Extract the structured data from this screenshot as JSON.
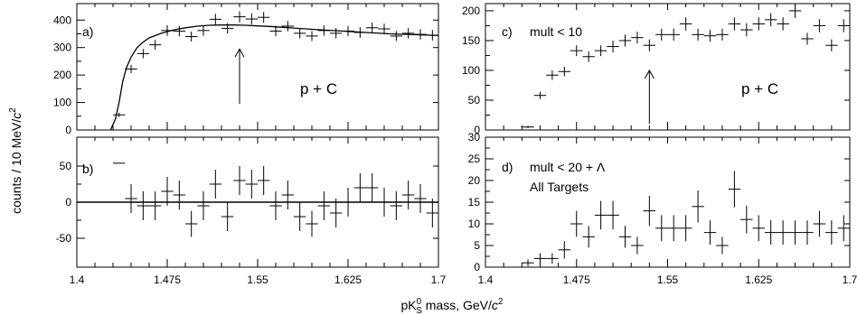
{
  "xlabel_prefix": "pK",
  "xlabel_sup": "0",
  "xlabel_sub": "S",
  "xlabel_mid": " mass, GeV/",
  "xlabel_c": "c",
  "xlabel_exp": "2",
  "ylabel_main": "counts / 10 MeV/",
  "ylabel_c": "c",
  "ylabel_exp": "2",
  "chart_data": [
    {
      "panel": "a",
      "type": "scatter",
      "label": "a)",
      "annotation": "p + C",
      "xlim": [
        1.4,
        1.7
      ],
      "ylim": [
        0,
        460
      ],
      "yticks": [
        0,
        100,
        200,
        300,
        400
      ],
      "ytick_labels": [
        "0",
        "100",
        "200",
        "300",
        "400"
      ],
      "arrow_at_x": 1.535,
      "arrow_from_y": 95,
      "arrow_to_y": 295,
      "x": [
        1.435,
        1.445,
        1.455,
        1.465,
        1.475,
        1.485,
        1.495,
        1.505,
        1.515,
        1.525,
        1.535,
        1.545,
        1.555,
        1.565,
        1.575,
        1.585,
        1.595,
        1.605,
        1.615,
        1.625,
        1.635,
        1.645,
        1.655,
        1.665,
        1.675,
        1.685,
        1.695
      ],
      "y": [
        55,
        222,
        278,
        310,
        362,
        360,
        340,
        362,
        403,
        370,
        412,
        404,
        410,
        360,
        378,
        352,
        342,
        362,
        352,
        360,
        355,
        372,
        368,
        342,
        352,
        348,
        345
      ],
      "xerr": 0.005,
      "yerr": [
        8,
        15,
        17,
        18,
        19,
        19,
        18,
        19,
        20,
        19,
        20,
        20,
        20,
        19,
        19,
        19,
        18,
        19,
        19,
        19,
        19,
        19,
        19,
        18,
        19,
        19,
        19
      ],
      "fit_curve": {
        "x": [
          1.428,
          1.432,
          1.435,
          1.438,
          1.441,
          1.445,
          1.45,
          1.455,
          1.46,
          1.47,
          1.48,
          1.49,
          1.5,
          1.51,
          1.52,
          1.53,
          1.54,
          1.55,
          1.56,
          1.57,
          1.58,
          1.59,
          1.6,
          1.62,
          1.64,
          1.66,
          1.68,
          1.7
        ],
        "y": [
          0,
          40,
          100,
          175,
          225,
          265,
          300,
          320,
          335,
          352,
          364,
          372,
          378,
          381,
          382,
          382,
          381,
          379,
          377,
          374,
          371,
          368,
          365,
          360,
          355,
          350,
          347,
          344
        ]
      }
    },
    {
      "panel": "b",
      "type": "scatter",
      "label": "b)",
      "xlim": [
        1.4,
        1.7
      ],
      "ylim": [
        -90,
        90
      ],
      "yticks": [
        -50,
        0,
        50
      ],
      "ytick_labels": [
        "-50",
        "0",
        "50"
      ],
      "xticks": [
        1.4,
        1.475,
        1.55,
        1.625,
        1.7
      ],
      "xtick_labels": [
        "1.4",
        "1.475",
        "1.55",
        "1.625",
        "1.7"
      ],
      "x": [
        1.435,
        1.445,
        1.455,
        1.465,
        1.475,
        1.485,
        1.495,
        1.505,
        1.515,
        1.525,
        1.535,
        1.545,
        1.555,
        1.565,
        1.575,
        1.585,
        1.595,
        1.605,
        1.615,
        1.625,
        1.635,
        1.645,
        1.655,
        1.665,
        1.675,
        1.685,
        1.695
      ],
      "y": [
        54,
        5,
        -5,
        -5,
        15,
        10,
        -30,
        -5,
        25,
        -20,
        30,
        25,
        30,
        -5,
        10,
        -20,
        -30,
        -5,
        -15,
        0,
        20,
        20,
        0,
        -5,
        10,
        5,
        -15
      ],
      "xerr": 0.005,
      "yerr": [
        0,
        20,
        20,
        20,
        20,
        20,
        18,
        20,
        20,
        20,
        20,
        20,
        20,
        20,
        20,
        20,
        18,
        20,
        20,
        20,
        20,
        20,
        20,
        20,
        20,
        20,
        20
      ]
    },
    {
      "panel": "c",
      "type": "scatter",
      "label": "c)",
      "title": "mult < 10",
      "annotation": "p + C",
      "xlim": [
        1.4,
        1.7
      ],
      "ylim": [
        0,
        212
      ],
      "yticks": [
        0,
        50,
        100,
        150,
        200
      ],
      "ytick_labels": [
        "0",
        "50",
        "100",
        "150",
        "200"
      ],
      "arrow_at_x": 1.535,
      "arrow_from_y": 10,
      "arrow_to_y": 100,
      "x": [
        1.435,
        1.445,
        1.455,
        1.465,
        1.475,
        1.485,
        1.495,
        1.505,
        1.515,
        1.525,
        1.535,
        1.545,
        1.555,
        1.565,
        1.575,
        1.585,
        1.595,
        1.605,
        1.615,
        1.625,
        1.635,
        1.645,
        1.655,
        1.665,
        1.675,
        1.685,
        1.695
      ],
      "y": [
        5,
        58,
        92,
        98,
        133,
        123,
        133,
        140,
        150,
        155,
        142,
        160,
        160,
        178,
        160,
        158,
        160,
        178,
        168,
        178,
        185,
        178,
        200,
        153,
        175,
        142,
        175
      ],
      "xerr": 0.005,
      "yerr": [
        2,
        6,
        8,
        8,
        9,
        9,
        9,
        10,
        10,
        10,
        10,
        10,
        10,
        11,
        10,
        10,
        10,
        11,
        11,
        11,
        11,
        11,
        12,
        10,
        11,
        10,
        11
      ]
    },
    {
      "panel": "d",
      "type": "scatter",
      "label": "d)",
      "title": "mult < 20  +  Λ",
      "subtitle": "All Targets",
      "xlim": [
        1.4,
        1.7
      ],
      "ylim": [
        0,
        30
      ],
      "yticks": [
        0,
        5,
        10,
        15,
        20,
        25,
        30
      ],
      "ytick_labels": [
        "0",
        "5",
        "10",
        "15",
        "20",
        "25",
        "30"
      ],
      "xticks": [
        1.4,
        1.475,
        1.55,
        1.625,
        1.7
      ],
      "xtick_labels": [
        "1.4",
        "1.475",
        "1.55",
        "1.625",
        "1.7"
      ],
      "x": [
        1.435,
        1.445,
        1.455,
        1.465,
        1.475,
        1.485,
        1.495,
        1.505,
        1.515,
        1.525,
        1.535,
        1.545,
        1.555,
        1.565,
        1.575,
        1.585,
        1.595,
        1.605,
        1.615,
        1.625,
        1.635,
        1.645,
        1.655,
        1.665,
        1.675,
        1.685,
        1.695
      ],
      "y": [
        1,
        2,
        2,
        4,
        10,
        7,
        12,
        12,
        7,
        5,
        13,
        9,
        9,
        9,
        14,
        8,
        5,
        18,
        11,
        9,
        8,
        8,
        8,
        8,
        10,
        8,
        9
      ],
      "xerr": 0.005,
      "yerr": [
        0.8,
        1.2,
        1.2,
        2,
        3,
        2.5,
        3.3,
        3.3,
        2.5,
        2,
        3.5,
        3,
        3,
        3,
        3.7,
        2.8,
        2,
        4.2,
        3.2,
        3,
        2.8,
        2.8,
        2.8,
        2.8,
        3,
        2.8,
        3
      ]
    }
  ]
}
